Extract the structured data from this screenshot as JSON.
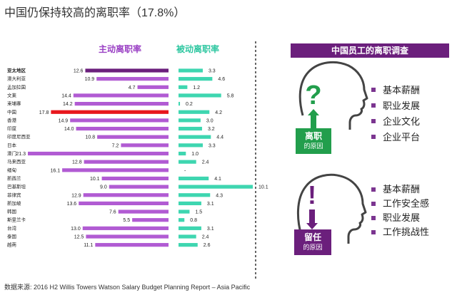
{
  "page_title": "中国仍保持较高的离职率（17.8%）",
  "source_note": "数据来源: 2016 H2 Willis Towers Watson Salary Budget Planning Report – Asia Pacific",
  "colors": {
    "voluntary": "#b15bd3",
    "involuntary": "#3ed6b0",
    "highlight": "#e8171d",
    "header_purple": "#9a40c4",
    "header_teal": "#2fc7a1",
    "dark_purple": "#6b1f7c",
    "green": "#229e4c"
  },
  "chart_data": {
    "type": "bar",
    "layout": "back-to-back horizontal",
    "series": [
      {
        "name": "主动离职率",
        "values": [
          12.6,
          10.9,
          4.7,
          14.4,
          14.2,
          17.8,
          14.9,
          14.0,
          10.8,
          7.2,
          21.3,
          12.8,
          16.1,
          10.1,
          9.0,
          12.9,
          13.6,
          7.6,
          5.5,
          13.0,
          12.5,
          11.1
        ]
      },
      {
        "name": "被动离职率",
        "value_labels": [
          "3.3",
          "4.6",
          "1.2",
          "5.8",
          "0.2",
          "4.2",
          "3.0",
          "3.2",
          "4.4",
          "3.3",
          "1.0",
          "2.4",
          "-",
          "4.1",
          "10.1",
          "4.3",
          "3.1",
          "1.5",
          "0.8",
          "3.1",
          "2.4",
          "2.6"
        ],
        "values": [
          3.3,
          4.6,
          1.2,
          5.8,
          0.2,
          4.2,
          3.0,
          3.2,
          4.4,
          3.3,
          1.0,
          2.4,
          null,
          4.1,
          10.1,
          4.3,
          3.1,
          1.5,
          0.8,
          3.1,
          2.4,
          2.6
        ]
      }
    ],
    "categories": [
      "亚太地区",
      "澳大利亚",
      "孟加拉国",
      "文莱",
      "柬埔寨",
      "中国",
      "香港",
      "印度",
      "印度尼西亚",
      "日本",
      "澳门",
      "马来西亚",
      "缅甸",
      "新西兰",
      "巴基斯坦",
      "菲律宾",
      "新加坡",
      "韩国",
      "斯里兰卡",
      "台湾",
      "泰国",
      "越南"
    ],
    "highlight": "中国",
    "bold_categories": [
      "亚太地区"
    ]
  },
  "survey_panel": {
    "title": "中国员工的离职调查",
    "leave": {
      "symbol": "?",
      "badge_title": "离职",
      "badge_sub": "的原因",
      "reasons": [
        "基本薪酬",
        "职业发展",
        "企业文化",
        "企业平台"
      ]
    },
    "stay": {
      "symbol": "!",
      "badge_title": "留任",
      "badge_sub": "的原因",
      "reasons": [
        "基本薪酬",
        "工作安全感",
        "职业发展",
        "工作挑战性"
      ]
    }
  }
}
